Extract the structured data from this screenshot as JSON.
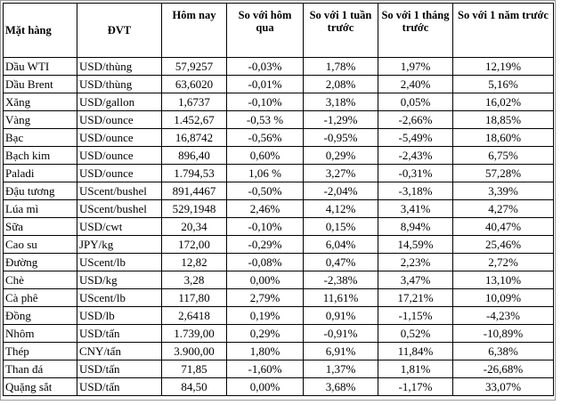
{
  "headers": [
    "Mặt hàng",
    "ĐVT",
    "Hôm nay",
    "So với hôm qua",
    "So với 1 tuần trước",
    "So với 1 tháng trước",
    "So với 1 năm trước"
  ],
  "rows": [
    [
      "Dầu WTI",
      "USD/thùng",
      "57,9257",
      "-0,03%",
      "1,78%",
      "1,97%",
      "12,19%"
    ],
    [
      "Dầu Brent",
      "USD/thùng",
      "63,6020",
      "-0,01%",
      "2,08%",
      "2,40%",
      "5,16%"
    ],
    [
      "Xăng",
      "USD/gallon",
      "1,6737",
      "-0,10%",
      "3,18%",
      "0,05%",
      "16,02%"
    ],
    [
      "Vàng",
      "USD/ounce",
      "1.452,67",
      "-0,53 %",
      "-1,29%",
      "-2,66%",
      "18,85%"
    ],
    [
      "Bạc",
      "USD/ounce",
      "16,8742",
      "-0,56%",
      "-0,95%",
      "-5,49%",
      "18,60%"
    ],
    [
      "Bạch kim",
      "USD/ounce",
      "896,40",
      "0,60%",
      "0,29%",
      "-2,43%",
      "6,75%"
    ],
    [
      "Paladi",
      "USD/ounce",
      "1.794,53",
      "1,06 %",
      "3,27%",
      "-0,31%",
      "57,28%"
    ],
    [
      "Đậu tương",
      "UScent/bushel",
      "891,4467",
      "-0,50%",
      "-2,04%",
      "-3,18%",
      "3,39%"
    ],
    [
      "Lúa mì",
      "UScent/bushel",
      "529,1948",
      "2,46%",
      "4,12%",
      "3,41%",
      "4,27%"
    ],
    [
      "Sữa",
      "USD/cwt",
      "20,34",
      "-0,10%",
      "0,15%",
      "8,94%",
      "40,47%"
    ],
    [
      "Cao su",
      "JPY/kg",
      "172,00",
      "-0,29%",
      "6,04%",
      "14,59%",
      "25,46%"
    ],
    [
      "Đường",
      "UScent/lb",
      "12,82",
      "-0,08%",
      "0,47%",
      "2,23%",
      "2,72%"
    ],
    [
      "Chè",
      "USD/kg",
      "3,28",
      "0,00%",
      "-2,38%",
      "3,47%",
      "13,10%"
    ],
    [
      "Cà phê",
      "UScent/lb",
      "117,80",
      "2,79%",
      "11,61%",
      "17,21%",
      "10,09%"
    ],
    [
      "Đồng",
      "USD/lb",
      "2,6418",
      "0,19%",
      "0,91%",
      "-1,15%",
      "-4,23%"
    ],
    [
      "Nhôm",
      "USD/tấn",
      "1.739,00",
      "0,29%",
      "-0,91%",
      "0,52%",
      "-10,89%"
    ],
    [
      "Thép",
      "CNY/tấn",
      "3.900,00",
      "1,80%",
      "6,91%",
      "11,84%",
      "6,38%"
    ],
    [
      "Than đá",
      "USD/tấn",
      "71,85",
      "-1,60%",
      "1,37%",
      "1,81%",
      "-26,68%"
    ],
    [
      "Quặng sắt",
      "USD/tấn",
      "84,50",
      "0,00%",
      "3,68%",
      "-1,17%",
      "33,07%"
    ]
  ]
}
